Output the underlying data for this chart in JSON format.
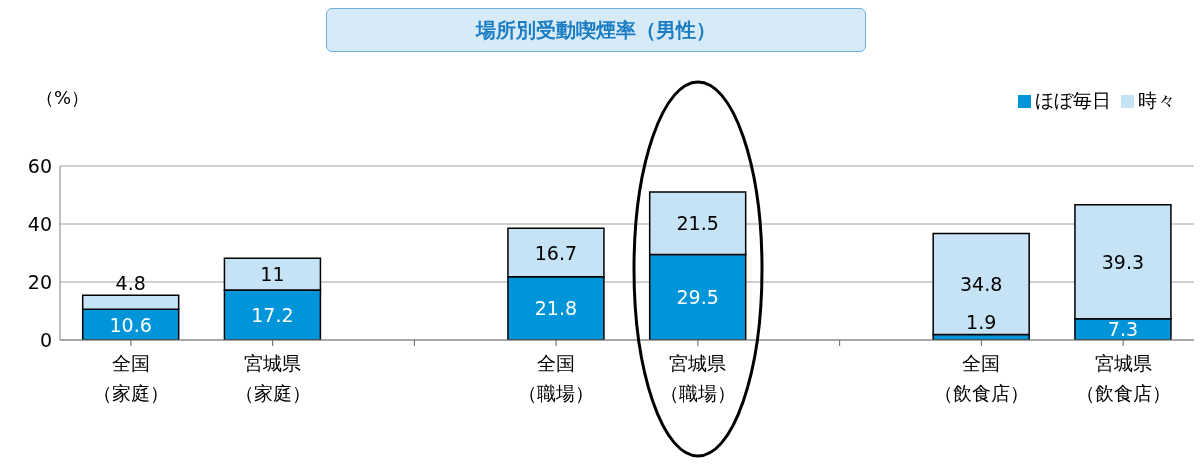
{
  "chart_data": {
    "type": "bar",
    "title": "場所別受動喫煙率（男性）",
    "ylabel": "（%）",
    "stacked": true,
    "categories": [
      "全国（家庭）",
      "宮城県（家庭）",
      null,
      "全国（職場）",
      "宮城県（職場）",
      null,
      "全国（飲食店）",
      "宮城県（飲食店）"
    ],
    "series": [
      {
        "name": "ほぼ毎日",
        "color": "#0095d9",
        "values": [
          10.6,
          17.2,
          null,
          21.8,
          29.5,
          null,
          1.9,
          7.3
        ]
      },
      {
        "name": "時々",
        "color": "#c6e2f5",
        "values": [
          4.8,
          11,
          null,
          16.7,
          21.5,
          null,
          34.8,
          39.3
        ]
      }
    ],
    "ylim": [
      0,
      60
    ],
    "yticks": [
      0,
      20,
      40,
      60
    ],
    "grid": "y",
    "legend": "top right",
    "data_labels": true
  }
}
